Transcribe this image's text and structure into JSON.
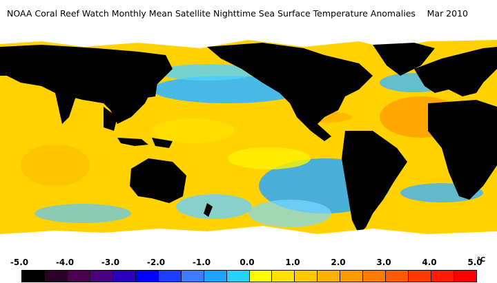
{
  "header": {
    "title": "NOAA Coral Reef Watch Monthly Mean Satellite Nighttime Sea Surface Temperature Anomalies",
    "date": "Mar 2010"
  },
  "legend": {
    "tick_labels": [
      "-5.0",
      "-4.0",
      "-3.0",
      "-2.0",
      "-1.0",
      "0.0",
      "1.0",
      "2.0",
      "3.0",
      "4.0",
      "5.0"
    ],
    "unit": "°C",
    "colors": [
      "#000000",
      "#2a0026",
      "#4a004f",
      "#4b007f",
      "#2a00b8",
      "#0000ff",
      "#1c3cff",
      "#3d7bff",
      "#1fa3ff",
      "#27d2ff",
      "#ffff00",
      "#ffe000",
      "#ffc800",
      "#ffb000",
      "#ff9a00",
      "#ff7a00",
      "#ff5a00",
      "#ff3a00",
      "#ff1a00",
      "#ff0000"
    ]
  },
  "map": {
    "land_color": "#000000",
    "ice_color": "#ffffff",
    "ocean_base_color": "#ffd700"
  }
}
